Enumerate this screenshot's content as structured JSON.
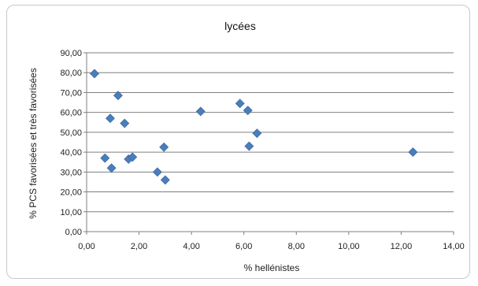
{
  "chart_data": {
    "type": "scatter",
    "title": "lycées",
    "xlabel": "% hellénistes",
    "ylabel": "% PCS favorisées et très favorisées",
    "xlim": [
      0,
      14
    ],
    "ylim": [
      0,
      90
    ],
    "x_ticks": [
      0,
      2,
      4,
      6,
      8,
      10,
      12,
      14
    ],
    "y_ticks": [
      0,
      10,
      20,
      30,
      40,
      50,
      60,
      70,
      80,
      90
    ],
    "x_tick_labels": [
      "0,00",
      "2,00",
      "4,00",
      "6,00",
      "8,00",
      "10,00",
      "12,00",
      "14,00"
    ],
    "y_tick_labels": [
      "0,00",
      "10,00",
      "20,00",
      "30,00",
      "40,00",
      "50,00",
      "60,00",
      "70,00",
      "80,00",
      "90,00"
    ],
    "grid": "horizontal",
    "marker_color": "#4a7ebb",
    "series": [
      {
        "points": [
          {
            "x": 0.3,
            "y": 79.5
          },
          {
            "x": 1.2,
            "y": 68.5
          },
          {
            "x": 0.9,
            "y": 57.0
          },
          {
            "x": 1.45,
            "y": 54.5
          },
          {
            "x": 0.7,
            "y": 37.0
          },
          {
            "x": 0.95,
            "y": 32.0
          },
          {
            "x": 1.6,
            "y": 36.5
          },
          {
            "x": 1.75,
            "y": 37.5
          },
          {
            "x": 2.7,
            "y": 30.0
          },
          {
            "x": 2.95,
            "y": 42.5
          },
          {
            "x": 3.0,
            "y": 26.0
          },
          {
            "x": 4.35,
            "y": 60.5
          },
          {
            "x": 5.85,
            "y": 64.5
          },
          {
            "x": 6.15,
            "y": 61.0
          },
          {
            "x": 6.2,
            "y": 43.0
          },
          {
            "x": 6.5,
            "y": 49.5
          },
          {
            "x": 12.45,
            "y": 40.0
          }
        ]
      }
    ]
  }
}
